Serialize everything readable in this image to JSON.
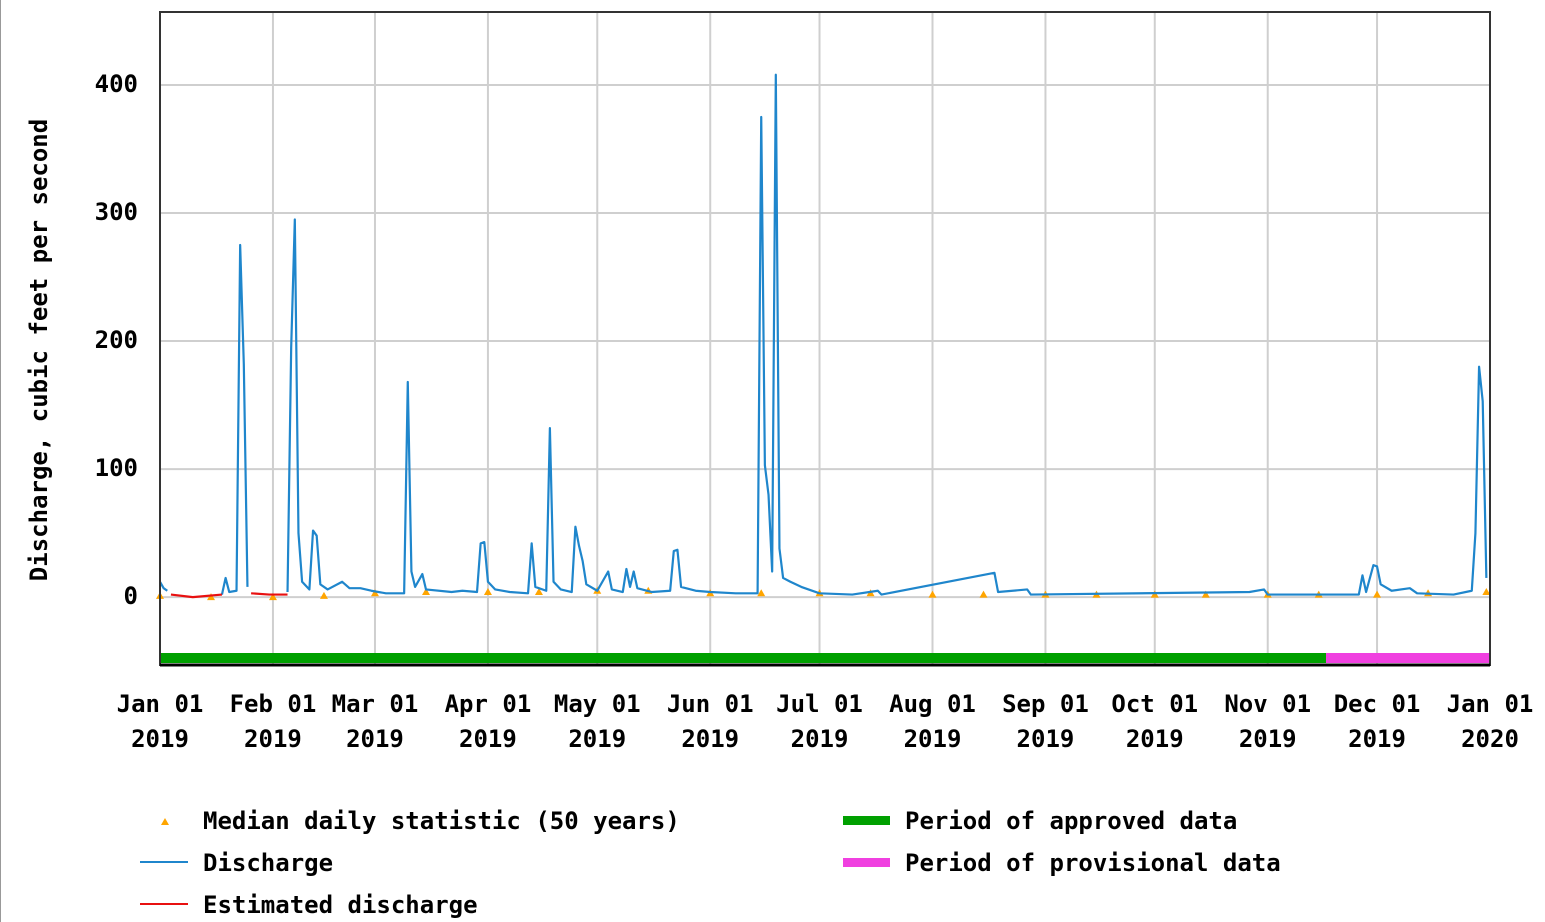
{
  "chart_data": {
    "type": "line",
    "y_label": "Discharge, cubic feet per second",
    "xlim": [
      "2019-01-01",
      "2020-01-01"
    ],
    "xticks": [
      {
        "value": "2019-01-01",
        "label": [
          "Jan 01",
          "2019"
        ]
      },
      {
        "value": "2019-02-01",
        "label": [
          "Feb 01",
          "2019"
        ]
      },
      {
        "value": "2019-03-01",
        "label": [
          "Mar 01",
          "2019"
        ]
      },
      {
        "value": "2019-04-01",
        "label": [
          "Apr 01",
          "2019"
        ]
      },
      {
        "value": "2019-05-01",
        "label": [
          "May 01",
          "2019"
        ]
      },
      {
        "value": "2019-06-01",
        "label": [
          "Jun 01",
          "2019"
        ]
      },
      {
        "value": "2019-07-01",
        "label": [
          "Jul 01",
          "2019"
        ]
      },
      {
        "value": "2019-08-01",
        "label": [
          "Aug 01",
          "2019"
        ]
      },
      {
        "value": "2019-09-01",
        "label": [
          "Sep 01",
          "2019"
        ]
      },
      {
        "value": "2019-10-01",
        "label": [
          "Oct 01",
          "2019"
        ]
      },
      {
        "value": "2019-11-01",
        "label": [
          "Nov 01",
          "2019"
        ]
      },
      {
        "value": "2019-12-01",
        "label": [
          "Dec 01",
          "2019"
        ]
      },
      {
        "value": "2020-01-01",
        "label": [
          "Jan 01",
          "2020"
        ]
      }
    ],
    "ylim": [
      -53,
      457
    ],
    "yticks": [
      0,
      100,
      200,
      300,
      400
    ],
    "grid": true,
    "series": [
      {
        "name": "Median daily statistic (50 years)",
        "color": "#ffa500",
        "kind": "markers",
        "x": [
          "2019-01-01",
          "2019-01-15",
          "2019-02-01",
          "2019-02-15",
          "2019-03-01",
          "2019-03-15",
          "2019-04-01",
          "2019-04-15",
          "2019-05-01",
          "2019-05-15",
          "2019-06-01",
          "2019-06-15",
          "2019-07-01",
          "2019-07-15",
          "2019-08-01",
          "2019-08-15",
          "2019-09-01",
          "2019-09-15",
          "2019-10-01",
          "2019-10-15",
          "2019-11-01",
          "2019-11-15",
          "2019-12-01",
          "2019-12-15",
          "2019-12-31"
        ],
        "values": [
          1,
          0,
          0,
          1,
          3,
          4,
          4,
          4,
          5,
          5,
          3,
          3,
          3,
          3,
          2,
          2,
          2,
          2,
          2,
          2,
          2,
          2,
          2,
          3,
          4
        ]
      },
      {
        "name": "Discharge",
        "color": "#1f86cc",
        "kind": "line",
        "x": [
          "2019-01-01",
          "2019-01-02",
          "2019-01-03",
          "2019-01-04",
          "2019-01-18",
          "2019-01-19",
          "2019-01-20",
          "2019-01-22",
          "2019-01-23",
          "2019-01-24",
          "2019-01-25",
          "2019-01-26",
          "2019-02-05",
          "2019-02-06",
          "2019-02-07",
          "2019-02-08",
          "2019-02-09",
          "2019-02-11",
          "2019-02-12",
          "2019-02-13",
          "2019-02-14",
          "2019-02-16",
          "2019-02-20",
          "2019-02-22",
          "2019-02-25",
          "2019-02-28",
          "2019-03-04",
          "2019-03-09",
          "2019-03-10",
          "2019-03-11",
          "2019-03-12",
          "2019-03-14",
          "2019-03-15",
          "2019-03-22",
          "2019-03-25",
          "2019-03-29",
          "2019-03-30",
          "2019-03-31",
          "2019-04-01",
          "2019-04-03",
          "2019-04-07",
          "2019-04-12",
          "2019-04-13",
          "2019-04-14",
          "2019-04-17",
          "2019-04-18",
          "2019-04-19",
          "2019-04-21",
          "2019-04-24",
          "2019-04-25",
          "2019-04-26",
          "2019-04-27",
          "2019-04-28",
          "2019-05-01",
          "2019-05-04",
          "2019-05-05",
          "2019-05-08",
          "2019-05-09",
          "2019-05-10",
          "2019-05-11",
          "2019-05-12",
          "2019-05-16",
          "2019-05-21",
          "2019-05-22",
          "2019-05-23",
          "2019-05-24",
          "2019-05-28",
          "2019-06-01",
          "2019-06-08",
          "2019-06-14",
          "2019-06-15",
          "2019-06-16",
          "2019-06-17",
          "2019-06-18",
          "2019-06-19",
          "2019-06-20",
          "2019-06-21",
          "2019-06-23",
          "2019-06-26",
          "2019-07-01",
          "2019-07-10",
          "2019-07-17",
          "2019-07-18",
          "2019-08-18",
          "2019-08-19",
          "2019-08-27",
          "2019-08-28",
          "2019-10-27",
          "2019-10-31",
          "2019-11-01",
          "2019-11-26",
          "2019-11-27",
          "2019-11-28",
          "2019-11-30",
          "2019-12-01",
          "2019-12-02",
          "2019-12-05",
          "2019-12-10",
          "2019-12-12",
          "2019-12-22",
          "2019-12-27",
          "2019-12-28",
          "2019-12-29",
          "2019-12-30",
          "2019-12-31"
        ],
        "values": [
          12,
          7,
          5,
          null,
          2,
          15,
          4,
          5,
          275,
          182,
          8,
          null,
          4,
          195,
          295,
          50,
          12,
          6,
          52,
          48,
          10,
          6,
          12,
          7,
          7,
          5,
          3,
          3,
          168,
          20,
          8,
          18,
          6,
          4,
          5,
          4,
          42,
          43,
          12,
          6,
          4,
          3,
          42,
          8,
          5,
          132,
          12,
          6,
          4,
          55,
          40,
          28,
          10,
          5,
          20,
          6,
          4,
          22,
          8,
          20,
          7,
          4,
          5,
          36,
          37,
          8,
          5,
          4,
          3,
          3,
          375,
          103,
          80,
          20,
          408,
          38,
          15,
          12,
          8,
          3,
          2,
          5,
          2,
          19,
          4,
          6,
          2,
          4,
          6,
          2,
          2,
          17,
          4,
          25,
          24,
          10,
          5,
          7,
          3,
          2,
          5,
          50,
          180,
          153,
          15
        ]
      },
      {
        "name": "Estimated discharge",
        "color": "#e81010",
        "kind": "line",
        "x": [
          "2019-01-04",
          "2019-01-10",
          "2019-01-18",
          "2019-01-22",
          "2019-01-26",
          "2019-01-31",
          "2019-02-05"
        ],
        "values": [
          2,
          0,
          2,
          null,
          3,
          2,
          2
        ]
      }
    ],
    "periods": [
      {
        "name": "Period of approved data",
        "color": "#00a000",
        "start": "2019-01-01",
        "end": "2019-11-17"
      },
      {
        "name": "Period of provisional data",
        "color": "#f040e0",
        "start": "2019-11-17",
        "end": "2020-01-01"
      }
    ]
  }
}
